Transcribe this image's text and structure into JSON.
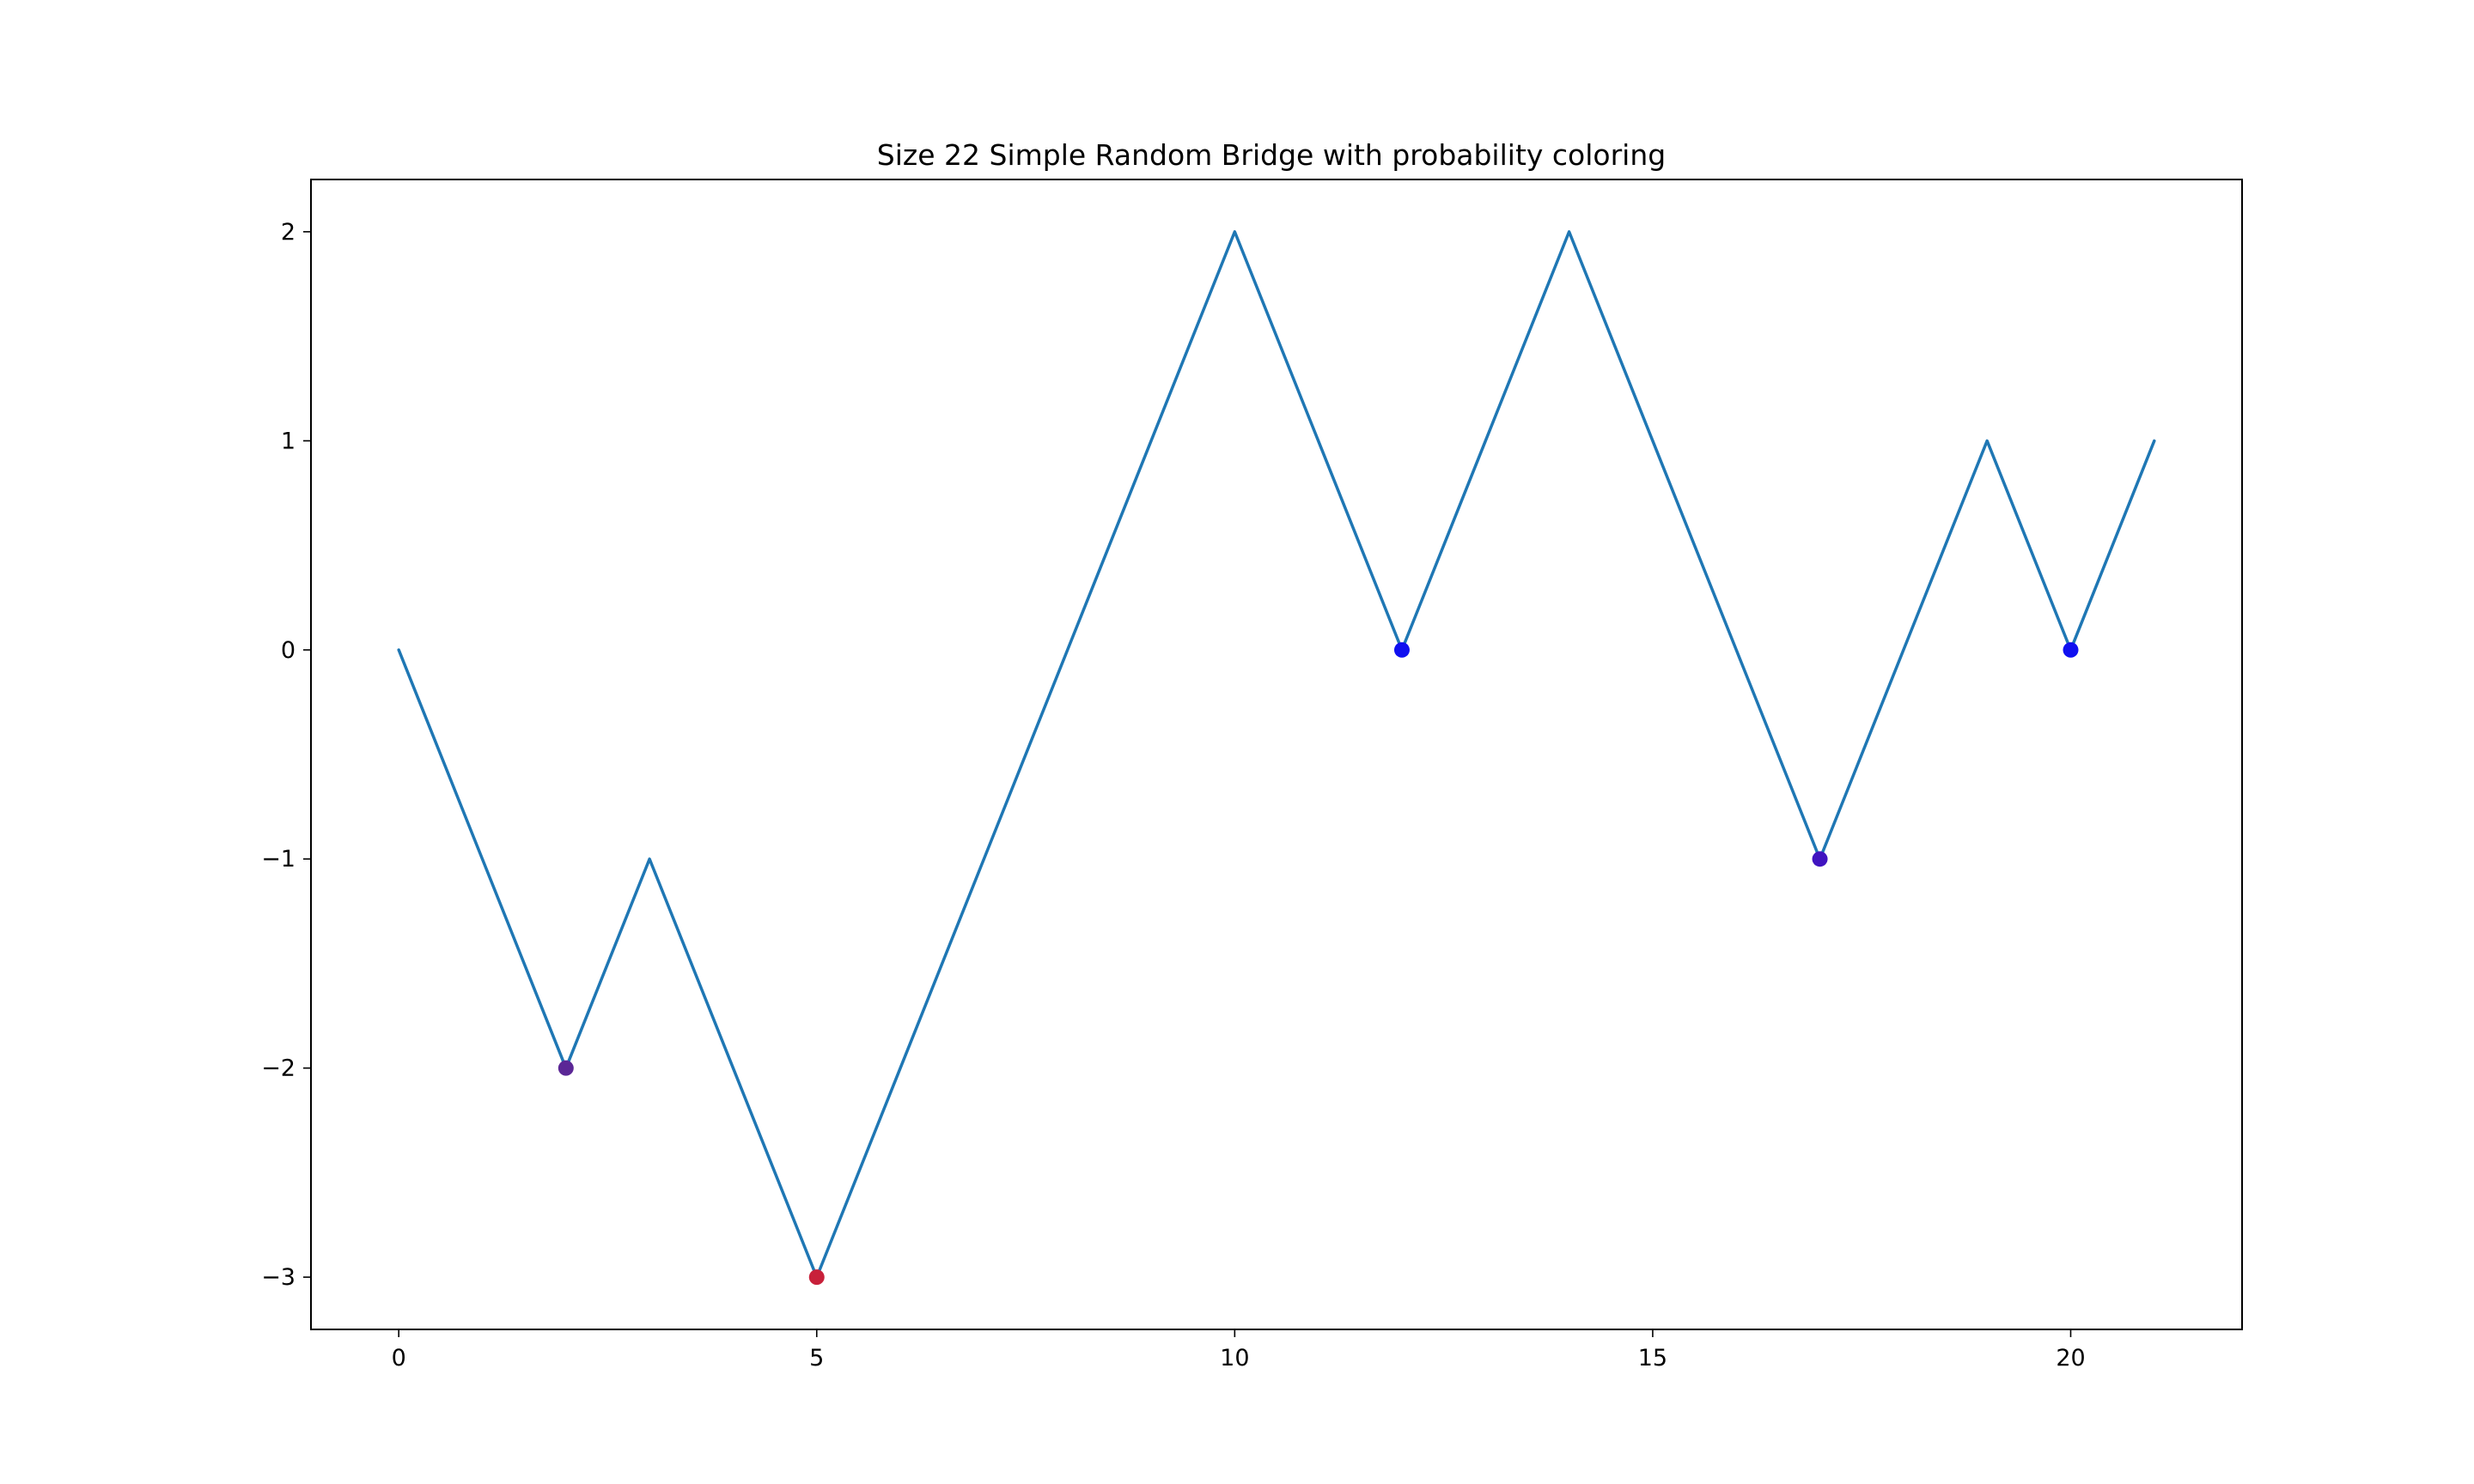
{
  "chart_data": {
    "type": "line",
    "title": "Size 22 Simple Random Bridge with probability coloring",
    "xlabel": "",
    "ylabel": "",
    "xlim": [
      -1.05,
      22.05
    ],
    "ylim": [
      -3.25,
      2.25
    ],
    "grid": false,
    "line_color": "#1f77b4",
    "x": [
      0,
      1,
      2,
      3,
      4,
      5,
      6,
      7,
      8,
      9,
      10,
      11,
      12,
      13,
      14,
      15,
      16,
      17,
      18,
      19,
      20,
      21
    ],
    "series": [
      {
        "values": [
          0,
          -1,
          -2,
          -1,
          -2,
          -3,
          -2,
          -1,
          0,
          1,
          2,
          1,
          0,
          1,
          2,
          1,
          0,
          -1,
          0,
          1,
          0,
          1
        ]
      }
    ],
    "markers": [
      {
        "x": 2,
        "y": -2,
        "color": "#5b2796"
      },
      {
        "x": 5,
        "y": -3,
        "color": "#c8203a"
      },
      {
        "x": 12,
        "y": 0,
        "color": "#1010f0"
      },
      {
        "x": 17,
        "y": -1,
        "color": "#4014c0"
      },
      {
        "x": 20,
        "y": 0,
        "color": "#1010f0"
      }
    ],
    "xticks": [
      {
        "value": 0,
        "label": "0"
      },
      {
        "value": 5,
        "label": "5"
      },
      {
        "value": 10,
        "label": "10"
      },
      {
        "value": 15,
        "label": "15"
      },
      {
        "value": 20,
        "label": "20"
      }
    ],
    "yticks": [
      {
        "value": -3,
        "label": "−3"
      },
      {
        "value": -2,
        "label": "−2"
      },
      {
        "value": -1,
        "label": "−1"
      },
      {
        "value": 0,
        "label": "0"
      },
      {
        "value": 1,
        "label": "1"
      },
      {
        "value": 2,
        "label": "2"
      }
    ]
  }
}
